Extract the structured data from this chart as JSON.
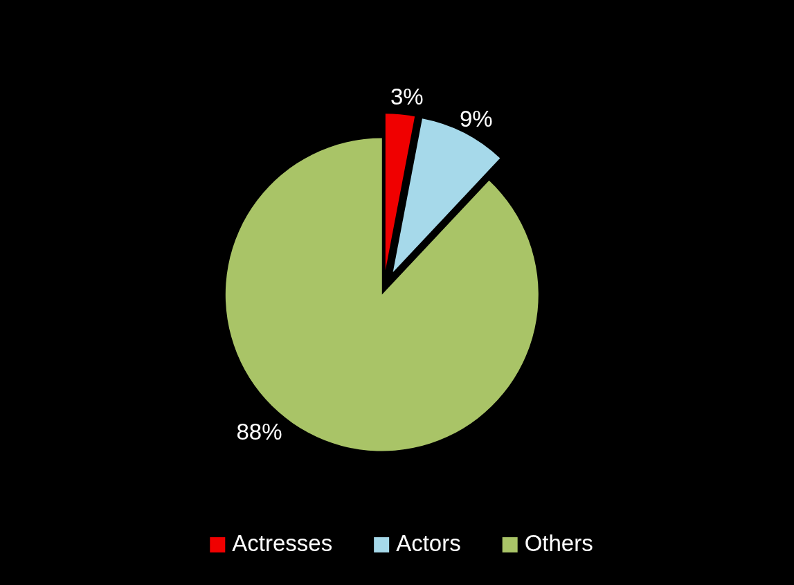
{
  "chart_data": {
    "type": "pie",
    "categories": [
      "Actresses",
      "Actors",
      "Others"
    ],
    "values": [
      3,
      9,
      88
    ],
    "colors": [
      "#f00000",
      "#a6d9ea",
      "#a9c467"
    ],
    "value_labels": [
      "3%",
      "9%",
      "88%"
    ],
    "legend": "bottom"
  }
}
